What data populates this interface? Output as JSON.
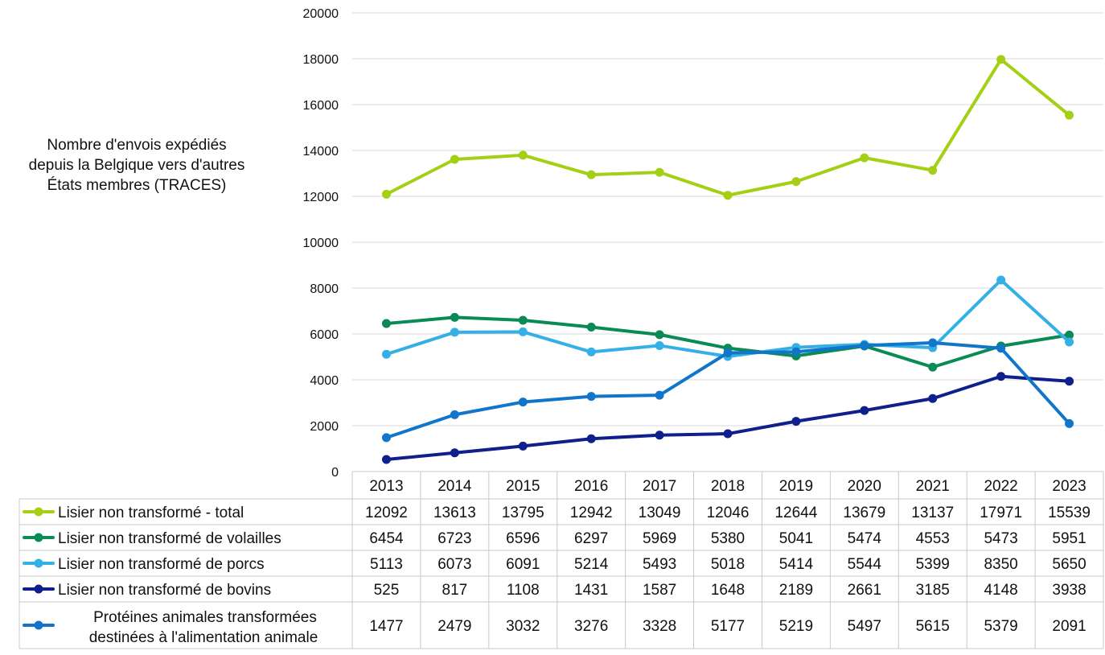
{
  "chart_data": {
    "type": "line",
    "ylabel": "Nombre d'envois expédiés\ndepuis la Belgique vers d'autres\nÉtats membres (TRACES)",
    "ylim": [
      0,
      20000
    ],
    "yticks": [
      0,
      2000,
      4000,
      6000,
      8000,
      10000,
      12000,
      14000,
      16000,
      18000,
      20000
    ],
    "grid": true,
    "legend": "data-table-left",
    "categories": [
      "2013",
      "2014",
      "2015",
      "2016",
      "2017",
      "2018",
      "2019",
      "2020",
      "2021",
      "2022",
      "2023"
    ],
    "series": [
      {
        "name": "Lisier non transformé - total",
        "color": "#a3d014",
        "values": [
          12092,
          13613,
          13795,
          12942,
          13049,
          12046,
          12644,
          13679,
          13137,
          17971,
          15539
        ]
      },
      {
        "name": "Lisier non transformé de volailles",
        "color": "#0a8a55",
        "values": [
          6454,
          6723,
          6596,
          6297,
          5969,
          5380,
          5041,
          5474,
          4553,
          5473,
          5951
        ]
      },
      {
        "name": "Lisier non transformé de porcs",
        "color": "#35b0e6",
        "values": [
          5113,
          6073,
          6091,
          5214,
          5493,
          5018,
          5414,
          5544,
          5399,
          8350,
          5650
        ]
      },
      {
        "name": "Lisier non transformé de bovins",
        "color": "#0f1f8c",
        "values": [
          525,
          817,
          1108,
          1431,
          1587,
          1648,
          2189,
          2661,
          3185,
          4148,
          3938
        ]
      },
      {
        "name": "Protéines animales transformées destinées à l'alimentation animale",
        "color": "#1176c9",
        "values": [
          1477,
          2479,
          3032,
          3276,
          3328,
          5177,
          5219,
          5497,
          5615,
          5379,
          2091
        ]
      }
    ]
  }
}
